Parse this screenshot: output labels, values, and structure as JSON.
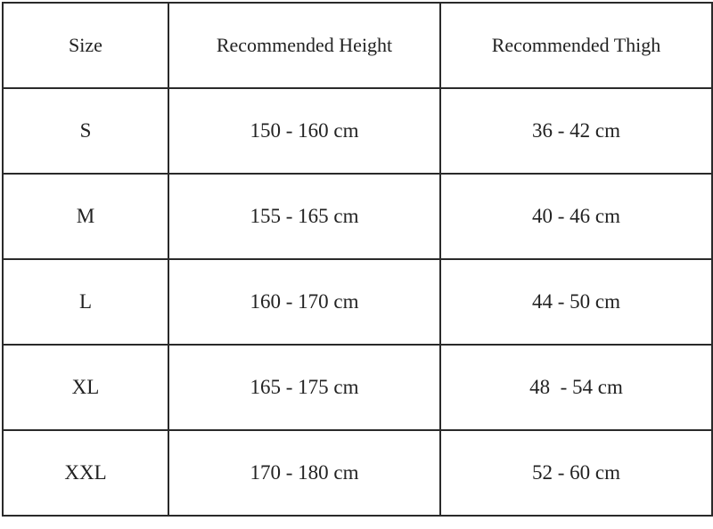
{
  "headers": [
    "Size",
    "Recommended Height",
    "Recommended Thigh"
  ],
  "rows": [
    [
      "S",
      "150 - 160 cm",
      "36 - 42 cm"
    ],
    [
      "M",
      "155 - 165 cm",
      "40 - 46 cm"
    ],
    [
      "L",
      "160 - 170 cm",
      "44 - 50 cm"
    ],
    [
      "XL",
      "165 - 175 cm",
      "48  - 54 cm"
    ],
    [
      "XXL",
      "170 - 180 cm",
      "52 - 60 cm"
    ]
  ]
}
